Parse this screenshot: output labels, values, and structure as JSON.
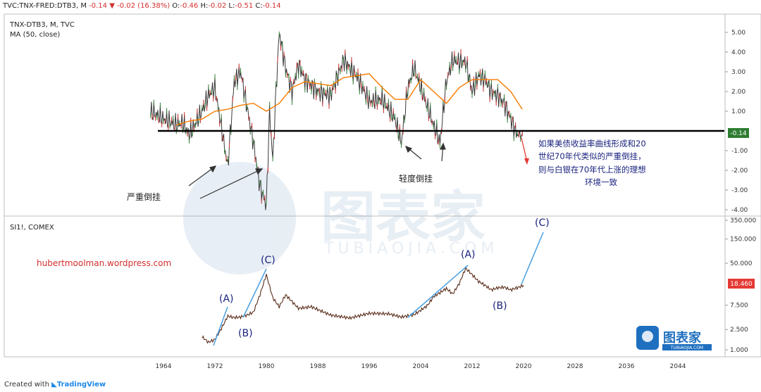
{
  "header": {
    "symbol": "TVC:TNX-FRED:DTB3, M",
    "change": "-0.14",
    "change_arrow": "▼",
    "change_detail": "-0.02 (16.38%)",
    "o_label": "O:",
    "o_value": "-0.46",
    "h_label": "H:",
    "h_value": "-0.02",
    "l_label": "L:",
    "l_value": "-0.51",
    "c_label": "C:",
    "c_value": "-0.14"
  },
  "footer": {
    "created_with": "Created with",
    "brand": "TradingView"
  },
  "watermark": {
    "text": "图表家",
    "sub": "TUBIAOJIA.COM",
    "logo_text": "图表家",
    "logo_sub": "TUBIAOJIA.COM"
  },
  "colors": {
    "price": "#3a3a3a",
    "up": "#2e7d32",
    "down": "#c62828",
    "ma": "#f57c00",
    "annotation_blue": "#1565c0",
    "wave_line": "#4a9fe0",
    "red_label": "#d32f2f"
  },
  "chart_data": [
    {
      "type": "line",
      "title": "TNX-DTB3, M, TVC",
      "indicator": "MA (50, close)",
      "y_ticks": [
        "5.00",
        "4.00",
        "3.00",
        "2.00",
        "1.00",
        "0.00",
        "-1.00",
        "-2.00",
        "-3.00",
        "-4.00"
      ],
      "ylim": [
        -4.3,
        5.6
      ],
      "last_value_label": "-0.14",
      "series": [
        {
          "values_years": [
            1962,
            1964,
            1966,
            1967,
            1968,
            1969,
            1970,
            1971,
            1972,
            1973,
            1974,
            1975,
            1976,
            1977,
            1978,
            1979,
            1980,
            1980.5,
            1981,
            1981.5,
            1982,
            1983,
            1984,
            1985,
            1986,
            1988,
            1990,
            1992,
            1994,
            1996,
            1998,
            2000,
            2001,
            2002,
            2003,
            2004,
            2006,
            2007,
            2008,
            2009,
            2010,
            2011,
            2012,
            2013,
            2014,
            2015,
            2016,
            2017,
            2018,
            2019,
            2019.8
          ],
          "values": [
            1.0,
            0.6,
            0.3,
            0.4,
            -0.2,
            0.4,
            1.0,
            1.8,
            2.2,
            0.2,
            -1.8,
            2.5,
            3.0,
            1.2,
            -0.6,
            -2.8,
            -3.8,
            1.0,
            -1.5,
            2.0,
            5.0,
            3.2,
            2.0,
            3.4,
            2.6,
            2.0,
            1.8,
            3.6,
            2.8,
            1.5,
            1.6,
            0.6,
            -0.6,
            2.2,
            3.2,
            2.2,
            0.3,
            -0.6,
            2.5,
            3.6,
            3.5,
            3.5,
            2.0,
            2.8,
            2.6,
            2.0,
            1.8,
            1.4,
            0.6,
            -0.2,
            -0.14
          ]
        },
        {
          "name": "MA (50, close)",
          "values_years": [
            1966,
            1968,
            1970,
            1972,
            1974,
            1976,
            1978,
            1980,
            1982,
            1984,
            1986,
            1988,
            1990,
            1992,
            1994,
            1996,
            1998,
            2000,
            2002,
            2004,
            2006,
            2008,
            2010,
            2012,
            2014,
            2016,
            2018,
            2019.8
          ],
          "values": [
            0.3,
            0.5,
            0.6,
            1.0,
            1.1,
            1.3,
            1.4,
            1.0,
            1.4,
            2.2,
            2.5,
            2.4,
            2.3,
            2.7,
            2.8,
            2.9,
            2.2,
            1.6,
            1.6,
            2.6,
            2.0,
            1.4,
            2.2,
            2.6,
            2.6,
            2.6,
            2.0,
            1.1
          ]
        }
      ],
      "annotations": {
        "severe_inversion": "严重倒挂",
        "mild_inversion": "轻度倒挂",
        "note_lines": [
          "如果美债收益率曲线形成和20",
          "世纪70年代类似的严重倒挂，",
          "则与白银在70年代上涨的理想",
          "环境一致"
        ]
      }
    },
    {
      "type": "line",
      "title": "SI1!, COMEX",
      "source_label": "hubertmoolman.wordpress.com",
      "y_scale": "log",
      "y_ticks": [
        "350.000",
        "150.000",
        "50.000",
        "18.460",
        "7.500",
        "2.500",
        "1.000"
      ],
      "last_value_label": "18.460",
      "x_ticks": [
        "1964",
        "1972",
        "1980",
        "1988",
        "1996",
        "2004",
        "2012",
        "2020",
        "2028",
        "2036",
        "2044"
      ],
      "series": [
        {
          "values_years": [
            1970,
            1971,
            1972,
            1973,
            1974,
            1975,
            1976,
            1977,
            1978,
            1979,
            1980,
            1981,
            1982,
            1983,
            1985,
            1987,
            1990,
            1993,
            1996,
            1999,
            2001,
            2003,
            2005,
            2006,
            2008,
            2009,
            2010,
            2011,
            2012,
            2013,
            2014,
            2015,
            2016,
            2017,
            2018,
            2019,
            2020
          ],
          "values": [
            1.8,
            1.4,
            1.6,
            2.6,
            4.6,
            4.3,
            4.4,
            4.8,
            5.5,
            12.0,
            30.0,
            10.5,
            7.0,
            12.0,
            6.5,
            7.0,
            4.8,
            4.2,
            5.2,
            5.1,
            4.4,
            4.9,
            7.3,
            11.0,
            16.0,
            12.5,
            20.0,
            40.0,
            30.0,
            22.0,
            18.5,
            15.0,
            16.5,
            17.0,
            15.0,
            16.5,
            18.46
          ]
        }
      ],
      "wave_labels": [
        "(A)",
        "(B)",
        "(C)",
        "(A)",
        "(B)",
        "(C)"
      ]
    }
  ]
}
